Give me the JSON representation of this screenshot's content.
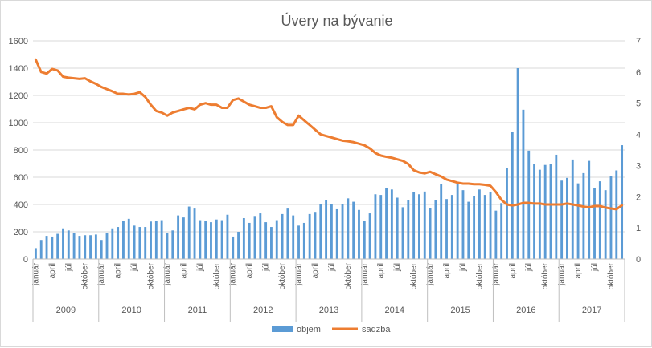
{
  "chart_data": {
    "type": "bar+line",
    "title": "Úvery na bývanie",
    "y_left": {
      "min": 0,
      "max": 1600,
      "step": 200,
      "ticks": [
        "0",
        "200",
        "400",
        "600",
        "800",
        "1000",
        "1200",
        "1400",
        "1600"
      ]
    },
    "y_right": {
      "min": 0,
      "max": 7,
      "step": 1,
      "ticks": [
        "0",
        "1",
        "2",
        "3",
        "4",
        "5",
        "6",
        "7"
      ]
    },
    "years": [
      "2009",
      "2010",
      "2011",
      "2012",
      "2013",
      "2014",
      "2015",
      "2016",
      "2017"
    ],
    "month_labels": [
      "január",
      "apríl",
      "júl",
      "október"
    ],
    "months_per_year": 12,
    "colors": {
      "bar": "#5b9bd5",
      "line": "#ed7d31",
      "grid": "#d9d9d9",
      "axis": "#bfbfbf",
      "text": "#595959"
    },
    "legend": {
      "position": "bottom",
      "items": [
        "objem",
        "sadzba"
      ]
    },
    "series": [
      {
        "name": "objem",
        "type": "bar",
        "axis": "left",
        "values": [
          80,
          140,
          170,
          165,
          185,
          225,
          210,
          190,
          170,
          175,
          175,
          180,
          140,
          190,
          225,
          235,
          280,
          295,
          245,
          235,
          235,
          275,
          280,
          285,
          190,
          210,
          320,
          305,
          385,
          370,
          285,
          280,
          270,
          290,
          285,
          325,
          165,
          200,
          300,
          265,
          310,
          335,
          270,
          235,
          285,
          330,
          370,
          320,
          245,
          265,
          330,
          340,
          405,
          435,
          405,
          365,
          400,
          445,
          420,
          360,
          280,
          335,
          475,
          470,
          520,
          510,
          450,
          380,
          430,
          490,
          475,
          495,
          375,
          430,
          550,
          440,
          470,
          550,
          505,
          420,
          460,
          510,
          470,
          490,
          355,
          410,
          670,
          935,
          1400,
          1095,
          795,
          700,
          655,
          690,
          700,
          765,
          575,
          595,
          730,
          555,
          630,
          720,
          520,
          570,
          505,
          610,
          650,
          835
        ]
      },
      {
        "name": "sadzba",
        "type": "line",
        "axis": "right",
        "values": [
          6.4,
          6.0,
          5.95,
          6.1,
          6.05,
          5.85,
          5.82,
          5.8,
          5.78,
          5.8,
          5.7,
          5.62,
          5.52,
          5.45,
          5.38,
          5.3,
          5.3,
          5.28,
          5.3,
          5.35,
          5.2,
          4.95,
          4.75,
          4.7,
          4.6,
          4.7,
          4.75,
          4.8,
          4.85,
          4.8,
          4.95,
          5.0,
          4.95,
          4.95,
          4.85,
          4.85,
          5.1,
          5.15,
          5.05,
          4.95,
          4.9,
          4.85,
          4.85,
          4.9,
          4.55,
          4.4,
          4.3,
          4.3,
          4.6,
          4.45,
          4.3,
          4.15,
          4.0,
          3.95,
          3.9,
          3.85,
          3.8,
          3.78,
          3.75,
          3.7,
          3.65,
          3.55,
          3.4,
          3.32,
          3.28,
          3.25,
          3.2,
          3.15,
          3.05,
          2.85,
          2.78,
          2.75,
          2.8,
          2.72,
          2.65,
          2.55,
          2.5,
          2.45,
          2.42,
          2.42,
          2.4,
          2.4,
          2.38,
          2.35,
          2.15,
          1.9,
          1.75,
          1.72,
          1.75,
          1.8,
          1.8,
          1.78,
          1.78,
          1.75,
          1.75,
          1.75,
          1.75,
          1.78,
          1.75,
          1.72,
          1.68,
          1.66,
          1.7,
          1.7,
          1.65,
          1.62,
          1.6,
          1.72
        ]
      }
    ]
  }
}
